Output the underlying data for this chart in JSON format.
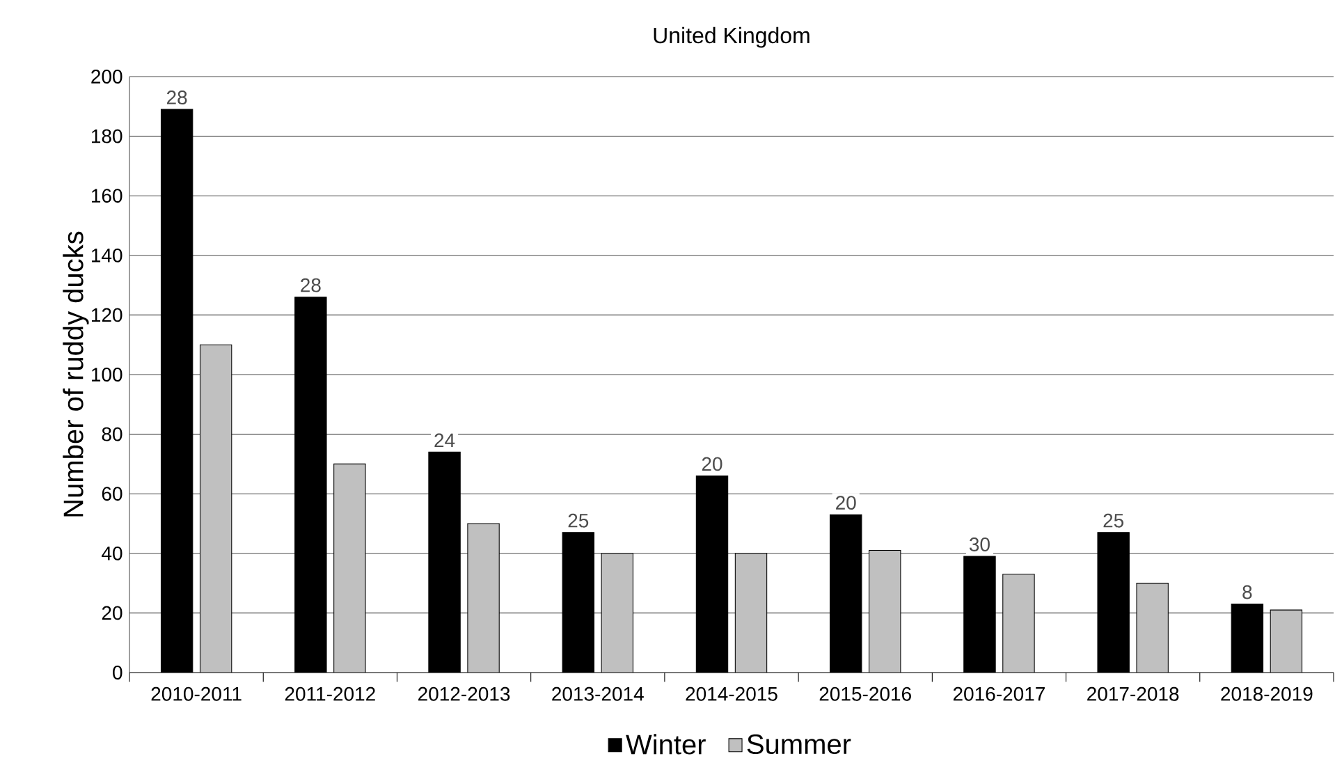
{
  "chart_data": {
    "type": "bar",
    "title": "United Kingdom",
    "ylabel": "Number of ruddy ducks",
    "categories": [
      "2010-2011",
      "2011-2012",
      "2012-2013",
      "2013-2014",
      "2014-2015",
      "2015-2016",
      "2016-2017",
      "2017-2018",
      "2018-2019"
    ],
    "series": [
      {
        "name": "Winter",
        "color": "#000000",
        "values": [
          189,
          126,
          74,
          47,
          66,
          53,
          39,
          47,
          23
        ]
      },
      {
        "name": "Summer",
        "color": "#c0c0c0",
        "values": [
          110,
          70,
          50,
          40,
          40,
          41,
          33,
          30,
          21
        ]
      }
    ],
    "annotations": [
      "28",
      "28",
      "24",
      "25",
      "20",
      "20",
      "30",
      "25",
      "8"
    ],
    "ylim": [
      0,
      200
    ],
    "yticks": [
      0,
      20,
      40,
      60,
      80,
      100,
      120,
      140,
      160,
      180,
      200
    ],
    "grid": "y",
    "legend": "bottom"
  }
}
